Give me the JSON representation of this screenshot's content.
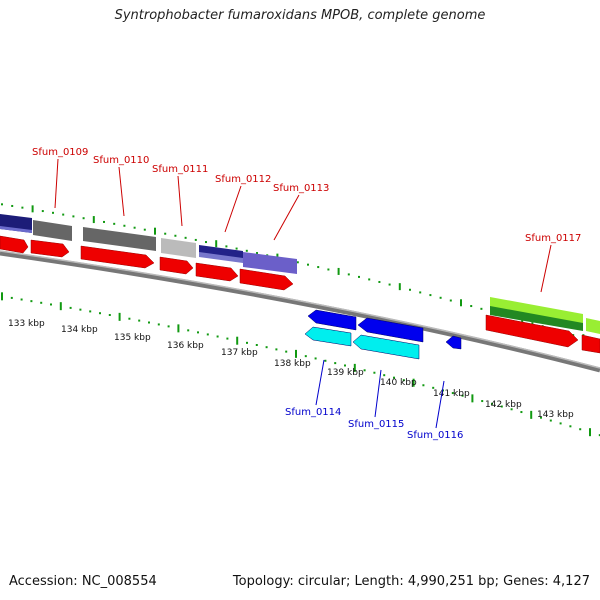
{
  "title": "Syntrophobacter fumaroxidans MPOB, complete genome",
  "footer": {
    "accession": "Accession: NC_008554",
    "summary": "Topology: circular; Length: 4,990,251 bp; Genes: 4,127"
  },
  "colors": {
    "forward_cds": "#ff0000",
    "reverse_cds": "#0000ee",
    "reverse_cds_2": "#00ffff",
    "tick": "#008000",
    "forward_label": "#cc0000",
    "reverse_label": "#0000cc",
    "backbone": "#888888"
  },
  "scale": {
    "unit": "kbp",
    "labels": [
      "133 kbp",
      "134 kbp",
      "135 kbp",
      "136 kbp",
      "137 kbp",
      "138 kbp",
      "139 kbp",
      "140 kbp",
      "141 kbp",
      "142 kbp",
      "143 kbp"
    ]
  },
  "forward_genes": [
    {
      "name": "Sfum_0109",
      "kbp": 135.0
    },
    {
      "name": "Sfum_0110",
      "kbp": 135.7
    },
    {
      "name": "Sfum_0111",
      "kbp": 136.9
    },
    {
      "name": "Sfum_0112",
      "kbp": 137.6
    },
    {
      "name": "Sfum_0113",
      "kbp": 138.4
    },
    {
      "name": "Sfum_0117",
      "kbp": 142.9
    }
  ],
  "reverse_genes": [
    {
      "name": "Sfum_0114",
      "kbp": 139.4
    },
    {
      "name": "Sfum_0115",
      "kbp": 140.4
    },
    {
      "name": "Sfum_0116",
      "kbp": 141.2
    }
  ]
}
